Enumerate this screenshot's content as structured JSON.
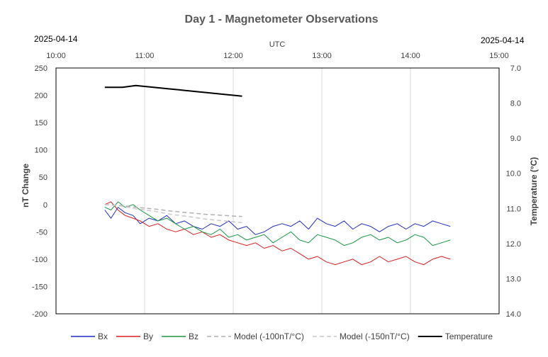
{
  "chart_data": {
    "type": "line",
    "title": "Day 1 - Magnetometer Observations",
    "top_left_date": "2025-04-14",
    "top_right_date": "2025-04-14",
    "x_axis": {
      "label": "UTC",
      "ticks": [
        "10:00",
        "11:00",
        "12:00",
        "13:00",
        "14:00",
        "15:00"
      ],
      "range_hours": [
        10.0,
        15.0
      ]
    },
    "y_left": {
      "label": "nT Change",
      "range": [
        -200,
        250
      ],
      "ticks": [
        "250",
        "200",
        "150",
        "100",
        "50",
        "0",
        "-50",
        "-100",
        "-150",
        "-200"
      ]
    },
    "y_right": {
      "label": "Temperature  (°C)",
      "range": [
        7.0,
        14.0
      ],
      "reversed": true,
      "ticks": [
        "7.0",
        "8.0",
        "9.0",
        "10.0",
        "11.0",
        "12.0",
        "13.0",
        "14.0"
      ]
    },
    "grid": {
      "vertical": true,
      "horizontal": false
    },
    "legend_position": "bottom",
    "series": [
      {
        "name": "Bx",
        "color": "#1f2fbf",
        "axis": "left",
        "style": "solid",
        "x": [
          10.55,
          10.62,
          10.7,
          10.78,
          10.87,
          10.95,
          11.05,
          11.15,
          11.25,
          11.35,
          11.45,
          11.55,
          11.65,
          11.75,
          11.85,
          11.95,
          12.05,
          12.15,
          12.25,
          12.35,
          12.45,
          12.55,
          12.65,
          12.75,
          12.85,
          12.95,
          13.05,
          13.15,
          13.25,
          13.35,
          13.45,
          13.55,
          13.65,
          13.75,
          13.85,
          13.95,
          14.05,
          14.15,
          14.25,
          14.35,
          14.45
        ],
        "y": [
          -10,
          -25,
          -5,
          -15,
          -20,
          -35,
          -25,
          -30,
          -20,
          -35,
          -30,
          -40,
          -45,
          -35,
          -40,
          -30,
          -45,
          -40,
          -55,
          -50,
          -40,
          -35,
          -40,
          -30,
          -45,
          -25,
          -35,
          -40,
          -30,
          -45,
          -35,
          -40,
          -50,
          -40,
          -35,
          -45,
          -35,
          -40,
          -30,
          -35,
          -40
        ]
      },
      {
        "name": "By",
        "color": "#d81e1e",
        "axis": "left",
        "style": "solid",
        "x": [
          10.55,
          10.62,
          10.7,
          10.78,
          10.87,
          10.95,
          11.05,
          11.15,
          11.25,
          11.35,
          11.45,
          11.55,
          11.65,
          11.75,
          11.85,
          11.95,
          12.05,
          12.15,
          12.25,
          12.35,
          12.45,
          12.55,
          12.65,
          12.75,
          12.85,
          12.95,
          13.05,
          13.15,
          13.25,
          13.35,
          13.45,
          13.55,
          13.65,
          13.75,
          13.85,
          13.95,
          14.05,
          14.15,
          14.25,
          14.35,
          14.45
        ],
        "y": [
          0,
          5,
          -10,
          -20,
          -25,
          -30,
          -40,
          -35,
          -45,
          -50,
          -45,
          -55,
          -50,
          -60,
          -55,
          -65,
          -70,
          -75,
          -70,
          -80,
          -75,
          -85,
          -80,
          -90,
          -100,
          -95,
          -105,
          -110,
          -105,
          -100,
          -110,
          -105,
          -95,
          -105,
          -100,
          -95,
          -105,
          -110,
          -100,
          -95,
          -100
        ]
      },
      {
        "name": "Bz",
        "color": "#1a9641",
        "axis": "left",
        "style": "solid",
        "x": [
          10.55,
          10.62,
          10.7,
          10.78,
          10.87,
          10.95,
          11.05,
          11.15,
          11.25,
          11.35,
          11.45,
          11.55,
          11.65,
          11.75,
          11.85,
          11.95,
          12.05,
          12.15,
          12.25,
          12.35,
          12.45,
          12.55,
          12.65,
          12.75,
          12.85,
          12.95,
          13.05,
          13.15,
          13.25,
          13.35,
          13.45,
          13.55,
          13.65,
          13.75,
          13.85,
          13.95,
          14.05,
          14.15,
          14.25,
          14.35,
          14.45
        ],
        "y": [
          -5,
          -10,
          5,
          -5,
          0,
          -10,
          -20,
          -30,
          -25,
          -35,
          -45,
          -40,
          -50,
          -55,
          -45,
          -60,
          -55,
          -65,
          -60,
          -55,
          -70,
          -60,
          -50,
          -65,
          -70,
          -55,
          -60,
          -65,
          -75,
          -70,
          -60,
          -55,
          -65,
          -60,
          -70,
          -65,
          -55,
          -60,
          -75,
          -70,
          -65
        ]
      },
      {
        "name": "Model (-100nT/°C)",
        "color": "#b0b0b0",
        "axis": "left",
        "style": "dashed",
        "x": [
          10.55,
          10.75,
          10.9,
          11.1,
          11.3,
          11.5,
          11.7,
          11.9,
          12.1
        ],
        "y": [
          0,
          -2,
          -5,
          -8,
          -12,
          -15,
          -18,
          -20,
          -22
        ]
      },
      {
        "name": "Model (-150nT/°C)",
        "color": "#c8c8c8",
        "axis": "left",
        "style": "dashed",
        "x": [
          10.55,
          10.75,
          10.9,
          11.1,
          11.3,
          11.5,
          11.7,
          11.9,
          12.1
        ],
        "y": [
          0,
          -3,
          -8,
          -12,
          -18,
          -22,
          -27,
          -30,
          -33
        ]
      },
      {
        "name": "Temperature",
        "color": "#000000",
        "axis": "right",
        "style": "solid",
        "x": [
          10.55,
          10.75,
          10.9,
          11.1,
          11.3,
          11.5,
          11.7,
          11.9,
          12.1
        ],
        "y": [
          7.55,
          7.55,
          7.5,
          7.55,
          7.6,
          7.65,
          7.7,
          7.75,
          7.8
        ]
      }
    ]
  }
}
